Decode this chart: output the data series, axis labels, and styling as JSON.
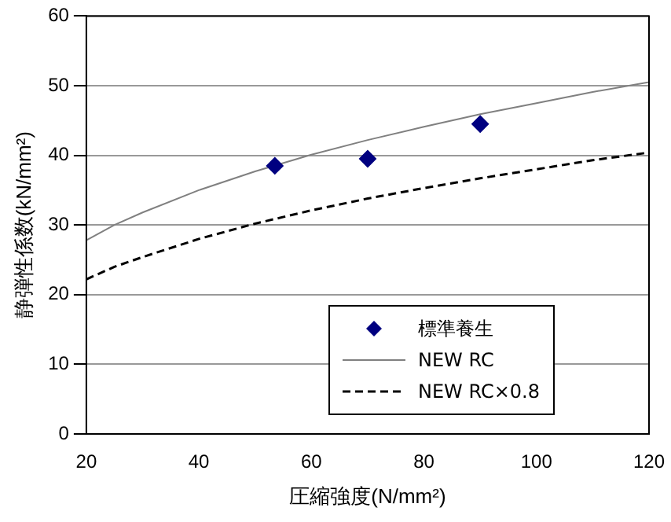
{
  "chart_data": {
    "type": "scatter",
    "xlabel": "圧縮強度(N/mm²)",
    "ylabel": "静弾性係数(kN/mm²)",
    "xlim": [
      20,
      120
    ],
    "xticks": [
      20,
      40,
      60,
      80,
      100,
      120
    ],
    "ylim": [
      0,
      60
    ],
    "yticks": [
      0,
      10,
      20,
      30,
      40,
      50,
      60
    ],
    "grid": "y",
    "legend": "bottom right",
    "series": [
      {
        "name": "標準養生",
        "type": "scatter",
        "color": "#000080",
        "marker": "diamond",
        "x": [
          53.5,
          70,
          90
        ],
        "values": [
          38.5,
          39.5,
          44.5
        ]
      },
      {
        "name": "NEW RC",
        "type": "line",
        "color": "#808080",
        "marker": "none",
        "line_style": "solid",
        "x": [
          20,
          25,
          30,
          40,
          50,
          60,
          70,
          80,
          90,
          100,
          110,
          120
        ],
        "values": [
          27.8,
          30.0,
          31.8,
          35.0,
          37.7,
          40.1,
          42.2,
          44.1,
          45.9,
          47.5,
          49.1,
          50.5
        ]
      },
      {
        "name": "NEW RC×0.8",
        "type": "line",
        "color": "#000000",
        "marker": "none",
        "line_style": "dashed",
        "x": [
          20,
          25,
          30,
          40,
          50,
          60,
          70,
          80,
          90,
          100,
          110,
          120
        ],
        "values": [
          22.2,
          24.0,
          25.4,
          28.0,
          30.2,
          32.1,
          33.8,
          35.3,
          36.7,
          38.0,
          39.3,
          40.4
        ]
      }
    ]
  }
}
